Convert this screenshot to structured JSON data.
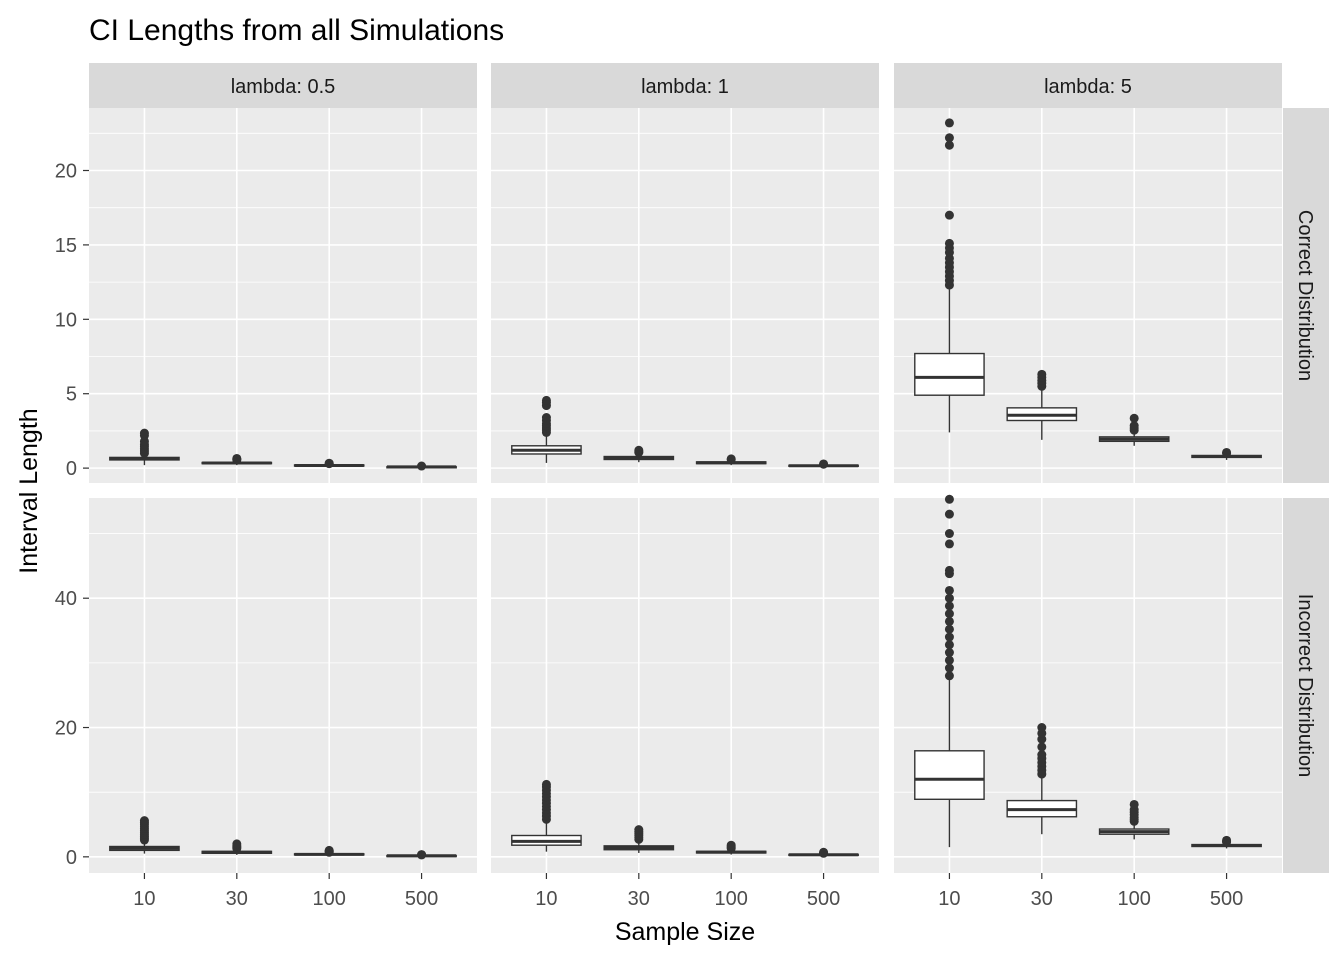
{
  "chart_data": {
    "type": "boxplot",
    "title": "CI Lengths from all Simulations",
    "xlabel": "Sample Size",
    "ylabel": "Interval Length",
    "x_categories": [
      "10",
      "30",
      "100",
      "500"
    ],
    "col_facets": [
      "lambda: 0.5",
      "lambda: 1",
      "lambda: 5"
    ],
    "row_facets": [
      "Correct Distribution",
      "Incorrect Distribution"
    ],
    "grid": true,
    "rows": [
      {
        "strip": "Correct Distribution",
        "ylim": [
          -1,
          24.2
        ],
        "yticks": [
          0,
          5,
          10,
          15,
          20
        ],
        "panels": [
          {
            "strip": "lambda: 0.5",
            "boxes": [
              {
                "x": "10",
                "lower": 0.2,
                "q1": 0.55,
                "median": 0.62,
                "q3": 0.72,
                "upper": 0.95,
                "outliers": [
                  1.0,
                  1.15,
                  1.3,
                  1.45,
                  1.6,
                  1.8,
                  2.2,
                  2.35
                ]
              },
              {
                "x": "30",
                "lower": 0.2,
                "q1": 0.3,
                "median": 0.34,
                "q3": 0.38,
                "upper": 0.5,
                "outliers": [
                  0.55,
                  0.6,
                  0.65
                ]
              },
              {
                "x": "100",
                "lower": 0.1,
                "q1": 0.15,
                "median": 0.18,
                "q3": 0.21,
                "upper": 0.27,
                "outliers": [
                  0.3,
                  0.33
                ]
              },
              {
                "x": "500",
                "lower": 0.04,
                "q1": 0.07,
                "median": 0.08,
                "q3": 0.09,
                "upper": 0.12,
                "outliers": [
                  0.14
                ]
              }
            ]
          },
          {
            "strip": "lambda: 1",
            "boxes": [
              {
                "x": "10",
                "lower": 0.35,
                "q1": 0.95,
                "median": 1.2,
                "q3": 1.5,
                "upper": 2.3,
                "outliers": [
                  2.4,
                  2.55,
                  2.7,
                  2.85,
                  3.0,
                  3.2,
                  3.4,
                  4.2,
                  4.4,
                  4.55
                ]
              },
              {
                "x": "30",
                "lower": 0.4,
                "q1": 0.58,
                "median": 0.68,
                "q3": 0.78,
                "upper": 1.0,
                "outliers": [
                  1.05,
                  1.1,
                  1.2
                ]
              },
              {
                "x": "100",
                "lower": 0.2,
                "q1": 0.3,
                "median": 0.36,
                "q3": 0.42,
                "upper": 0.55,
                "outliers": [
                  0.58,
                  0.62
                ]
              },
              {
                "x": "500",
                "lower": 0.09,
                "q1": 0.14,
                "median": 0.16,
                "q3": 0.19,
                "upper": 0.24,
                "outliers": [
                  0.26,
                  0.28
                ]
              }
            ]
          },
          {
            "strip": "lambda: 5",
            "boxes": [
              {
                "x": "10",
                "lower": 2.4,
                "q1": 4.9,
                "median": 6.1,
                "q3": 7.7,
                "upper": 12.0,
                "outliers": [
                  12.3,
                  12.6,
                  12.9,
                  13.2,
                  13.5,
                  13.8,
                  14.1,
                  14.5,
                  14.8,
                  15.1,
                  17.0,
                  21.7,
                  22.2,
                  23.2
                ]
              },
              {
                "x": "30",
                "lower": 1.9,
                "q1": 3.2,
                "median": 3.55,
                "q3": 4.05,
                "upper": 5.3,
                "outliers": [
                  5.5,
                  5.7,
                  5.9,
                  6.1,
                  6.3
                ]
              },
              {
                "x": "100",
                "lower": 1.5,
                "q1": 1.8,
                "median": 1.95,
                "q3": 2.1,
                "upper": 2.45,
                "outliers": [
                  2.55,
                  2.7,
                  2.85,
                  3.35
                ]
              },
              {
                "x": "500",
                "lower": 0.55,
                "q1": 0.72,
                "median": 0.78,
                "q3": 0.85,
                "upper": 0.95,
                "outliers": [
                  1.0,
                  1.05
                ]
              }
            ]
          }
        ]
      },
      {
        "strip": "Incorrect Distribution",
        "ylim": [
          -2.5,
          55.5
        ],
        "yticks": [
          0,
          20,
          40
        ],
        "panels": [
          {
            "strip": "lambda: 0.5",
            "boxes": [
              {
                "x": "10",
                "lower": 0.5,
                "q1": 1.0,
                "median": 1.3,
                "q3": 1.6,
                "upper": 2.4,
                "outliers": [
                  2.6,
                  2.9,
                  3.2,
                  3.5,
                  3.8,
                  4.1,
                  4.4,
                  4.7,
                  5.0,
                  5.3,
                  5.6
                ]
              },
              {
                "x": "30",
                "lower": 0.3,
                "q1": 0.55,
                "median": 0.7,
                "q3": 0.85,
                "upper": 1.2,
                "outliers": [
                  1.3,
                  1.5,
                  1.7,
                  2.0
                ]
              },
              {
                "x": "100",
                "lower": 0.15,
                "q1": 0.3,
                "median": 0.38,
                "q3": 0.46,
                "upper": 0.65,
                "outliers": [
                  0.7,
                  0.8,
                  0.9,
                  1.0
                ]
              },
              {
                "x": "500",
                "lower": 0.06,
                "q1": 0.12,
                "median": 0.16,
                "q3": 0.2,
                "upper": 0.27,
                "outliers": [
                  0.3,
                  0.35
                ]
              }
            ]
          },
          {
            "strip": "lambda: 1",
            "boxes": [
              {
                "x": "10",
                "lower": 0.8,
                "q1": 1.8,
                "median": 2.4,
                "q3": 3.3,
                "upper": 5.4,
                "outliers": [
                  5.8,
                  6.3,
                  6.8,
                  7.3,
                  7.8,
                  8.3,
                  8.8,
                  9.3,
                  9.8,
                  10.3,
                  10.8,
                  11.2
                ]
              },
              {
                "x": "30",
                "lower": 0.6,
                "q1": 1.1,
                "median": 1.4,
                "q3": 1.7,
                "upper": 2.5,
                "outliers": [
                  2.7,
                  3.0,
                  3.3,
                  3.6,
                  3.9,
                  4.2
                ]
              },
              {
                "x": "100",
                "lower": 0.35,
                "q1": 0.6,
                "median": 0.72,
                "q3": 0.85,
                "upper": 1.2,
                "outliers": [
                  1.3,
                  1.45,
                  1.6,
                  1.8
                ]
              },
              {
                "x": "500",
                "lower": 0.15,
                "q1": 0.28,
                "median": 0.33,
                "q3": 0.38,
                "upper": 0.5,
                "outliers": [
                  0.55,
                  0.6,
                  0.7
                ]
              }
            ]
          },
          {
            "strip": "lambda: 5",
            "boxes": [
              {
                "x": "10",
                "lower": 1.5,
                "q1": 8.9,
                "median": 12.0,
                "q3": 16.4,
                "upper": 27.4,
                "outliers": [
                  28.0,
                  29.2,
                  30.4,
                  31.6,
                  32.8,
                  34.0,
                  35.2,
                  36.4,
                  37.6,
                  38.8,
                  40.0,
                  41.2,
                  43.8,
                  44.3,
                  48.4,
                  50.0,
                  53.0,
                  55.3
                ]
              },
              {
                "x": "30",
                "lower": 3.5,
                "q1": 6.2,
                "median": 7.3,
                "q3": 8.7,
                "upper": 12.3,
                "outliers": [
                  12.8,
                  13.4,
                  14.0,
                  14.6,
                  15.2,
                  15.8,
                  17.0,
                  18.2,
                  19.1,
                  20.0
                ]
              },
              {
                "x": "100",
                "lower": 2.7,
                "q1": 3.5,
                "median": 3.9,
                "q3": 4.3,
                "upper": 5.2,
                "outliers": [
                  5.5,
                  5.8,
                  6.1,
                  6.5,
                  6.9,
                  7.3,
                  8.1
                ]
              },
              {
                "x": "500",
                "lower": 1.3,
                "q1": 1.6,
                "median": 1.75,
                "q3": 1.9,
                "upper": 2.2,
                "outliers": [
                  2.3,
                  2.4,
                  2.55
                ]
              }
            ]
          }
        ]
      }
    ]
  }
}
